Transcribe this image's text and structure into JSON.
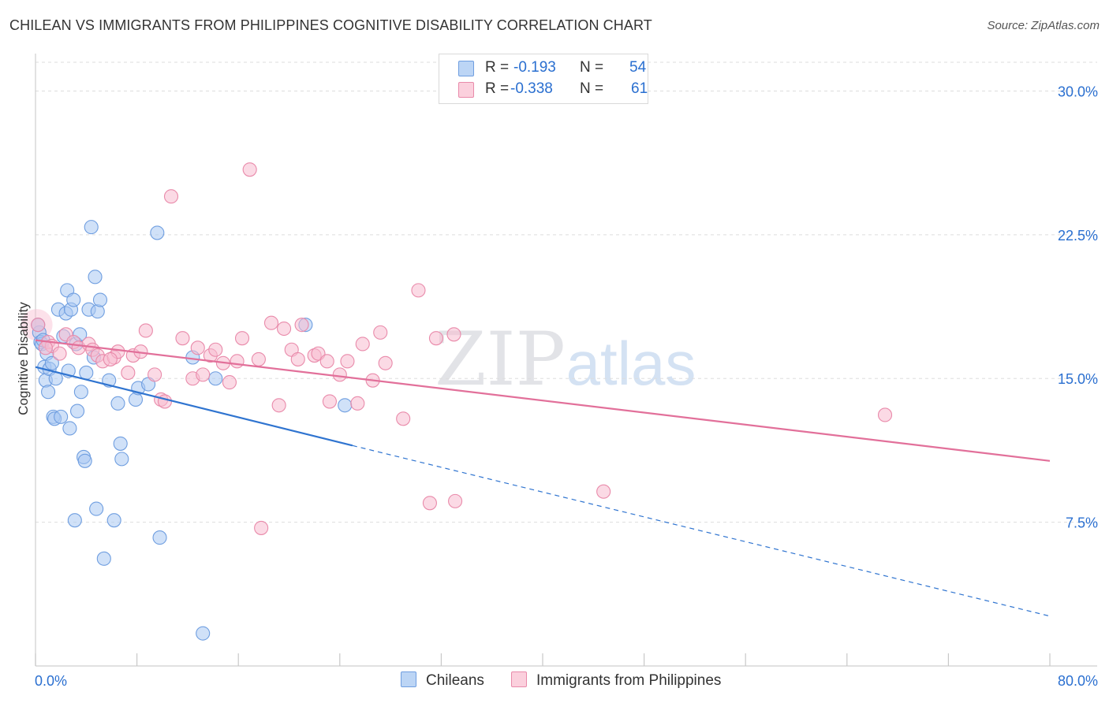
{
  "title": "CHILEAN VS IMMIGRANTS FROM PHILIPPINES COGNITIVE DISABILITY CORRELATION CHART",
  "source": "Source: ZipAtlas.com",
  "watermark": {
    "zip": "ZIP",
    "atlas": "atlas"
  },
  "legend": {
    "r_label": "R =",
    "n_label": "N =",
    "rows": [
      {
        "r": "-0.193",
        "n": "54"
      },
      {
        "r": "-0.338",
        "n": "61"
      }
    ]
  },
  "chart_data": {
    "type": "scatter",
    "title": "CHILEAN VS IMMIGRANTS FROM PHILIPPINES COGNITIVE DISABILITY CORRELATION CHART",
    "xlabel": "",
    "ylabel": "Cognitive Disability",
    "xlim": [
      0,
      80
    ],
    "ylim": [
      0,
      31.5
    ],
    "x_tick_labels": [
      "0.0%",
      "80.0%"
    ],
    "y_ticks": [
      7.5,
      15.0,
      22.5,
      30.0
    ],
    "y_tick_labels": [
      "7.5%",
      "15.0%",
      "22.5%",
      "30.0%"
    ],
    "grid": true,
    "legend_position": "top-center",
    "series": [
      {
        "name": "Chileans",
        "color": "#a9c9f2",
        "edge_color": "#6f9ee0",
        "line_color": "#2f74d0",
        "trend": {
          "x0": 0,
          "y0": 15.6,
          "x1": 25,
          "y1": 11.5,
          "dashed_to_x": 80,
          "dashed_to_y": 2.6
        },
        "points": [
          [
            0.3,
            17.4
          ],
          [
            0.4,
            16.9
          ],
          [
            0.5,
            16.8
          ],
          [
            0.6,
            17.0
          ],
          [
            0.7,
            15.6
          ],
          [
            0.8,
            14.9
          ],
          [
            0.9,
            16.3
          ],
          [
            1.0,
            14.3
          ],
          [
            1.1,
            15.5
          ],
          [
            1.3,
            15.8
          ],
          [
            1.4,
            13.0
          ],
          [
            1.5,
            12.9
          ],
          [
            1.6,
            15.0
          ],
          [
            1.8,
            18.6
          ],
          [
            2.0,
            13.0
          ],
          [
            2.2,
            17.2
          ],
          [
            2.4,
            18.4
          ],
          [
            2.5,
            19.6
          ],
          [
            2.6,
            15.4
          ],
          [
            2.7,
            12.4
          ],
          [
            2.8,
            18.6
          ],
          [
            3.0,
            19.1
          ],
          [
            3.1,
            7.6
          ],
          [
            3.2,
            16.8
          ],
          [
            3.3,
            13.3
          ],
          [
            3.5,
            17.3
          ],
          [
            3.6,
            14.3
          ],
          [
            3.8,
            10.9
          ],
          [
            3.9,
            10.7
          ],
          [
            4.0,
            15.3
          ],
          [
            4.2,
            18.6
          ],
          [
            4.4,
            22.9
          ],
          [
            4.6,
            16.1
          ],
          [
            4.7,
            20.3
          ],
          [
            4.8,
            8.2
          ],
          [
            4.9,
            18.5
          ],
          [
            5.1,
            19.1
          ],
          [
            5.4,
            5.6
          ],
          [
            5.8,
            14.9
          ],
          [
            6.2,
            7.6
          ],
          [
            6.5,
            13.7
          ],
          [
            6.7,
            11.6
          ],
          [
            6.8,
            10.8
          ],
          [
            7.9,
            13.9
          ],
          [
            8.1,
            14.5
          ],
          [
            8.9,
            14.7
          ],
          [
            9.6,
            22.6
          ],
          [
            9.8,
            6.7
          ],
          [
            12.4,
            16.1
          ],
          [
            13.2,
            1.7
          ],
          [
            14.2,
            15.0
          ],
          [
            21.3,
            17.8
          ],
          [
            24.4,
            13.6
          ],
          [
            0.2,
            17.8
          ]
        ]
      },
      {
        "name": "Immigrants from Philippines",
        "color": "#f8bcd0",
        "edge_color": "#e98aaa",
        "line_color": "#e2709a",
        "trend": {
          "x0": 0,
          "y0": 17.0,
          "x1": 80,
          "y1": 10.7
        },
        "points": [
          [
            0.2,
            17.8
          ],
          [
            1.0,
            16.9
          ],
          [
            1.3,
            16.7
          ],
          [
            1.9,
            16.3
          ],
          [
            2.4,
            17.3
          ],
          [
            3.0,
            16.9
          ],
          [
            3.4,
            16.6
          ],
          [
            4.2,
            16.8
          ],
          [
            4.5,
            16.5
          ],
          [
            4.9,
            16.2
          ],
          [
            5.3,
            15.9
          ],
          [
            6.2,
            16.1
          ],
          [
            6.5,
            16.4
          ],
          [
            7.3,
            15.3
          ],
          [
            7.7,
            16.2
          ],
          [
            8.3,
            16.4
          ],
          [
            8.7,
            17.5
          ],
          [
            9.4,
            15.2
          ],
          [
            9.9,
            13.9
          ],
          [
            10.2,
            13.8
          ],
          [
            10.7,
            24.5
          ],
          [
            11.6,
            17.1
          ],
          [
            12.4,
            15.0
          ],
          [
            12.8,
            16.6
          ],
          [
            13.2,
            15.2
          ],
          [
            13.8,
            16.2
          ],
          [
            14.2,
            16.5
          ],
          [
            14.8,
            15.8
          ],
          [
            15.3,
            14.8
          ],
          [
            15.9,
            15.9
          ],
          [
            16.3,
            17.1
          ],
          [
            16.9,
            25.9
          ],
          [
            17.6,
            16.0
          ],
          [
            17.8,
            7.2
          ],
          [
            18.6,
            17.9
          ],
          [
            19.2,
            13.6
          ],
          [
            19.6,
            17.6
          ],
          [
            20.2,
            16.5
          ],
          [
            20.7,
            16.0
          ],
          [
            21.0,
            17.8
          ],
          [
            22.0,
            16.2
          ],
          [
            22.3,
            16.3
          ],
          [
            23.0,
            15.9
          ],
          [
            23.2,
            13.8
          ],
          [
            24.0,
            15.2
          ],
          [
            24.6,
            15.9
          ],
          [
            25.4,
            13.7
          ],
          [
            25.8,
            16.8
          ],
          [
            26.6,
            14.9
          ],
          [
            27.2,
            17.4
          ],
          [
            27.6,
            15.8
          ],
          [
            29.0,
            12.9
          ],
          [
            30.2,
            19.6
          ],
          [
            31.1,
            8.5
          ],
          [
            31.6,
            17.1
          ],
          [
            33.0,
            17.3
          ],
          [
            33.1,
            8.6
          ],
          [
            44.8,
            9.1
          ],
          [
            67.0,
            13.1
          ],
          [
            0.8,
            16.6
          ],
          [
            5.9,
            16.0
          ]
        ]
      }
    ]
  }
}
